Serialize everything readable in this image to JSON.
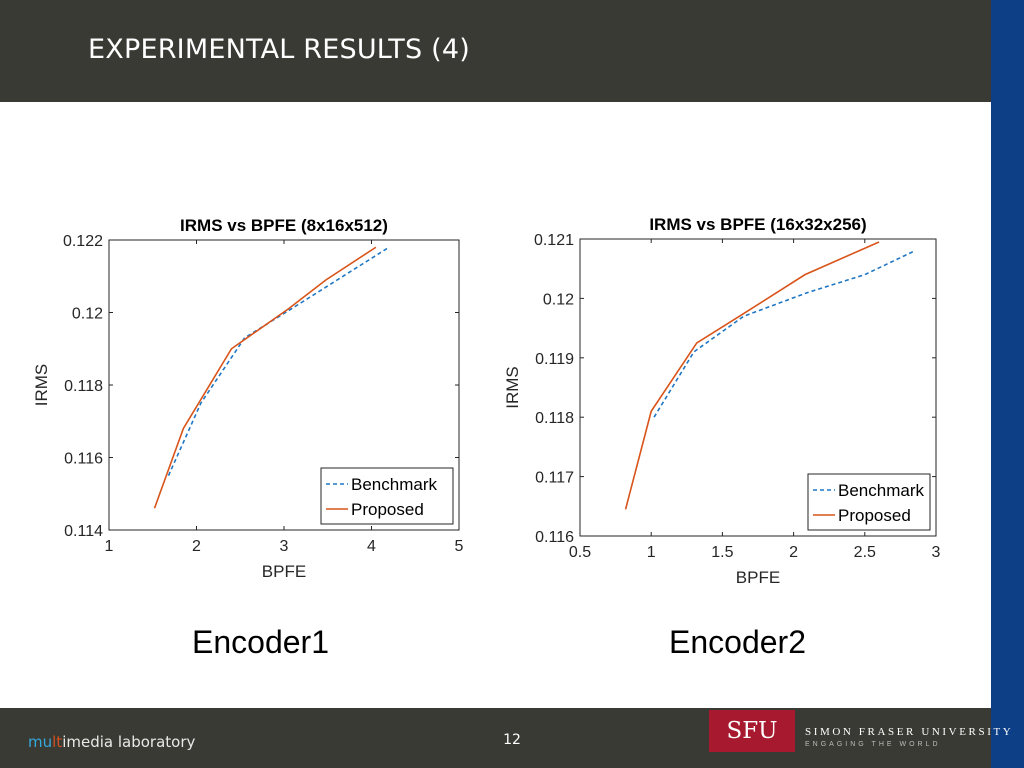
{
  "slide": {
    "title": "EXPERIMENTAL RESULTS (4)",
    "page_number": "12",
    "footer_brand": {
      "part1": "mu",
      "part2": "lt",
      "part3": "imedia laboratory"
    },
    "logo_text": "SFU",
    "university_name": "SIMON FRASER UNIVERSITY",
    "university_tagline": "ENGAGING THE WORLD",
    "captions": [
      "Encoder1",
      "Encoder2"
    ]
  },
  "colors": {
    "header": "#3a3a34",
    "sidebar": "#0c3f86",
    "logo": "#a6192e",
    "benchmark": "#1f77c4",
    "proposed": "#d9541a"
  },
  "chart_data": [
    {
      "type": "line",
      "title": "IRMS vs BPFE (8x16x512)",
      "xlabel": "BPFE",
      "ylabel": "IRMS",
      "xlim": [
        1,
        5
      ],
      "ylim": [
        0.114,
        0.122
      ],
      "xticks": [
        1,
        2,
        3,
        4,
        5
      ],
      "yticks": [
        0.114,
        0.116,
        0.118,
        0.12,
        0.122
      ],
      "ytick_labels": [
        "0.114",
        "0.116",
        "0.118",
        "0.12",
        "0.122"
      ],
      "legend_position": "bottom-right",
      "series": [
        {
          "name": "Benchmark",
          "style": "dashed",
          "x": [
            1.68,
            2.05,
            2.55,
            3.15,
            4.2
          ],
          "y": [
            0.1155,
            0.1175,
            0.1193,
            0.1202,
            0.1218
          ]
        },
        {
          "name": "Proposed",
          "style": "solid",
          "x": [
            1.52,
            1.85,
            2.4,
            3.05,
            3.48,
            4.05
          ],
          "y": [
            0.1146,
            0.1168,
            0.119,
            0.1201,
            0.1209,
            0.1218
          ]
        }
      ]
    },
    {
      "type": "line",
      "title": "IRMS vs BPFE (16x32x256)",
      "xlabel": "BPFE",
      "ylabel": "IRMS",
      "xlim": [
        0.5,
        3
      ],
      "ylim": [
        0.116,
        0.121
      ],
      "xticks": [
        0.5,
        1,
        1.5,
        2,
        2.5,
        3
      ],
      "xtick_labels": [
        "0.5",
        "1",
        "1.5",
        "2",
        "2.5",
        "3"
      ],
      "yticks": [
        0.116,
        0.117,
        0.118,
        0.119,
        0.12,
        0.121
      ],
      "ytick_labels": [
        "0.116",
        "0.117",
        "0.118",
        "0.119",
        "0.12",
        "0.121"
      ],
      "legend_position": "bottom-right",
      "series": [
        {
          "name": "Benchmark",
          "style": "dashed",
          "x": [
            1.02,
            1.3,
            1.65,
            2.1,
            2.5,
            2.85
          ],
          "y": [
            0.118,
            0.1191,
            0.1197,
            0.1201,
            0.1204,
            0.1208
          ]
        },
        {
          "name": "Proposed",
          "style": "solid",
          "x": [
            0.82,
            1.0,
            1.32,
            1.62,
            2.08,
            2.6
          ],
          "y": [
            0.11645,
            0.1181,
            0.11925,
            0.1197,
            0.1204,
            0.12095
          ]
        }
      ]
    }
  ]
}
